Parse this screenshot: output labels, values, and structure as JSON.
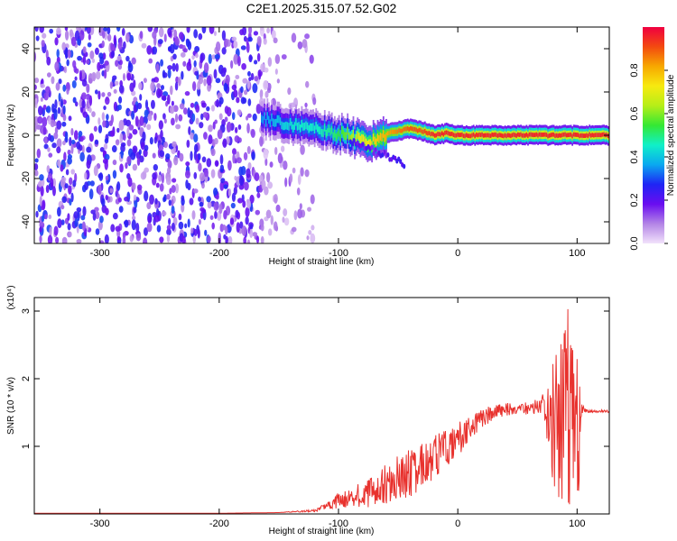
{
  "title": "C2E1.2025.315.07.52.G02",
  "chart_data": [
    {
      "type": "heatmap",
      "xlabel": "Height of straight line (km)",
      "ylabel": "Frequency (Hz)",
      "xlim": [
        -355,
        127
      ],
      "ylim": [
        -50,
        50
      ],
      "x_ticks": [
        -300,
        -200,
        -100,
        0,
        100
      ],
      "y_ticks": [
        -40,
        -20,
        0,
        20,
        40
      ],
      "colorbar": {
        "label": "Normalized spectral amplitude",
        "range": [
          0,
          1
        ],
        "ticks": [
          "0.0",
          "0.2",
          "0.4",
          "0.6",
          "0.8"
        ],
        "colors": [
          "#f2e2fb",
          "#b384e6",
          "#6a0df0",
          "#1f24f5",
          "#0aa8f0",
          "#10f0c8",
          "#34e834",
          "#b6ee18",
          "#f7ea10",
          "#f7a800",
          "#f34a10",
          "#f00040"
        ]
      },
      "noise_region": {
        "x": [
          -355,
          -165
        ],
        "amplitude": "0.1-0.3"
      },
      "ridge": {
        "x": [
          -165,
          -150,
          -135,
          -120,
          -105,
          -92,
          -82,
          -72,
          -62,
          -52,
          -40,
          -30,
          -20,
          -10,
          0,
          20,
          40,
          60,
          80,
          100,
          127
        ],
        "frequency_hz": [
          8,
          6,
          4,
          3,
          1,
          0,
          -2,
          -3,
          0,
          2,
          3,
          2,
          0,
          1,
          0,
          0,
          0,
          0,
          0,
          0,
          0
        ],
        "amplitude": [
          0.35,
          0.4,
          0.45,
          0.45,
          0.5,
          0.6,
          0.7,
          0.75,
          0.8,
          0.85,
          0.9,
          0.9,
          0.95,
          0.95,
          0.95,
          0.95,
          0.95,
          0.95,
          0.95,
          0.95,
          0.95
        ]
      }
    },
    {
      "type": "line",
      "xlabel": "Height of straight line (km)",
      "ylabel": "SNR (10 * v/v)",
      "y_multiplier": "(x10⁴)",
      "xlim": [
        -355,
        127
      ],
      "ylim": [
        0,
        3.2
      ],
      "x_ticks": [
        -300,
        -200,
        -100,
        0,
        100
      ],
      "y_ticks": [
        1,
        2,
        3
      ],
      "color": "#e8322e",
      "x": [
        -355,
        -300,
        -250,
        -200,
        -150,
        -120,
        -110,
        -100,
        -90,
        -80,
        -70,
        -60,
        -50,
        -40,
        -30,
        -20,
        -10,
        0,
        10,
        20,
        30,
        40,
        50,
        60,
        70,
        75,
        80,
        85,
        90,
        95,
        100,
        105,
        110,
        127
      ],
      "y": [
        0.01,
        0.01,
        0.01,
        0.01,
        0.02,
        0.05,
        0.12,
        0.2,
        0.25,
        0.3,
        0.35,
        0.45,
        0.55,
        0.6,
        0.7,
        0.8,
        0.95,
        1.1,
        1.25,
        1.4,
        1.5,
        1.55,
        1.55,
        1.57,
        1.6,
        1.55,
        1.4,
        1.2,
        1.5,
        1.6,
        1.1,
        1.55,
        1.52,
        1.52
      ],
      "fluctuation": [
        0,
        0,
        0,
        0,
        0,
        0.02,
        0.05,
        0.12,
        0.15,
        0.2,
        0.25,
        0.3,
        0.35,
        0.35,
        0.35,
        0.35,
        0.3,
        0.25,
        0.2,
        0.15,
        0.12,
        0.1,
        0.08,
        0.1,
        0.12,
        0.5,
        1.0,
        1.4,
        1.5,
        1.5,
        1.2,
        0.05,
        0.02,
        0.02
      ]
    }
  ]
}
